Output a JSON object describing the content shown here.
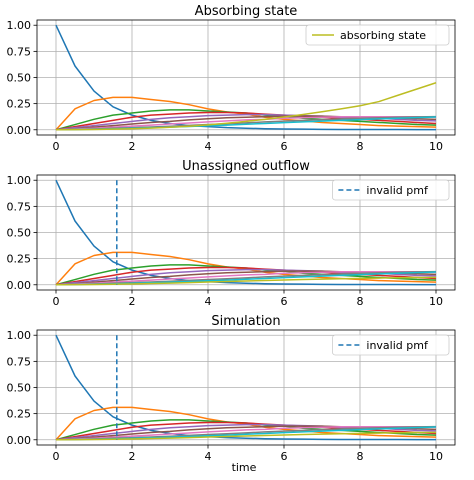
{
  "figure": {
    "xlabel": "time"
  },
  "chart_data": [
    {
      "type": "line",
      "title": "Absorbing state",
      "xlim": [
        -0.5,
        10.5
      ],
      "ylim": [
        -0.05,
        1.05
      ],
      "xticks": [
        0,
        2,
        4,
        6,
        8,
        10
      ],
      "xtick_labels": [
        "0",
        "2",
        "4",
        "6",
        "8",
        "10"
      ],
      "yticks": [
        0,
        0.25,
        0.5,
        0.75,
        1
      ],
      "ytick_labels": [
        "0.00",
        "0.25",
        "0.50",
        "0.75",
        "1.00"
      ],
      "grid": true,
      "legend": {
        "position": "top-right",
        "entries": [
          {
            "label": "absorbing state",
            "style": "solid",
            "color": "#bcbd22"
          }
        ]
      },
      "x": [
        0,
        0.5,
        1,
        1.5,
        2,
        2.5,
        3,
        3.5,
        4,
        4.5,
        5,
        5.5,
        6,
        6.5,
        7,
        7.5,
        8,
        8.5,
        9,
        9.5,
        10
      ],
      "series": [
        {
          "color": "#1f77b4",
          "values": [
            1,
            0.61,
            0.37,
            0.22,
            0.14,
            0.09,
            0.06,
            0.04,
            0.03,
            0.02,
            0.015,
            0.01,
            0.008,
            0.006,
            0.004,
            0.003,
            0.003,
            0.002,
            0.002,
            0.001,
            0.001
          ]
        },
        {
          "color": "#ff7f0e",
          "values": [
            0,
            0.2,
            0.28,
            0.31,
            0.31,
            0.29,
            0.27,
            0.24,
            0.2,
            0.17,
            0.15,
            0.12,
            0.1,
            0.085,
            0.07,
            0.06,
            0.05,
            0.04,
            0.035,
            0.03,
            0.025
          ]
        },
        {
          "color": "#2ca02c",
          "values": [
            0,
            0.05,
            0.1,
            0.14,
            0.16,
            0.18,
            0.19,
            0.19,
            0.18,
            0.17,
            0.16,
            0.14,
            0.13,
            0.11,
            0.1,
            0.09,
            0.08,
            0.07,
            0.06,
            0.05,
            0.045
          ]
        },
        {
          "color": "#d62728",
          "values": [
            0,
            0.03,
            0.06,
            0.09,
            0.12,
            0.14,
            0.15,
            0.16,
            0.165,
            0.165,
            0.16,
            0.15,
            0.14,
            0.13,
            0.12,
            0.11,
            0.1,
            0.09,
            0.08,
            0.07,
            0.06
          ]
        },
        {
          "color": "#9467bd",
          "values": [
            0,
            0.02,
            0.04,
            0.06,
            0.08,
            0.1,
            0.115,
            0.125,
            0.135,
            0.14,
            0.145,
            0.145,
            0.14,
            0.135,
            0.13,
            0.12,
            0.115,
            0.11,
            0.1,
            0.09,
            0.085
          ]
        },
        {
          "color": "#8c564b",
          "values": [
            0,
            0.01,
            0.025,
            0.04,
            0.055,
            0.07,
            0.08,
            0.095,
            0.105,
            0.115,
            0.12,
            0.125,
            0.13,
            0.13,
            0.13,
            0.125,
            0.12,
            0.115,
            0.11,
            0.105,
            0.1
          ]
        },
        {
          "color": "#e377c2",
          "values": [
            0,
            0.008,
            0.015,
            0.025,
            0.035,
            0.045,
            0.055,
            0.065,
            0.075,
            0.085,
            0.095,
            0.1,
            0.11,
            0.115,
            0.12,
            0.125,
            0.125,
            0.125,
            0.125,
            0.125,
            0.12
          ]
        },
        {
          "color": "#7f7f7f",
          "values": [
            0,
            0.003,
            0.008,
            0.014,
            0.02,
            0.027,
            0.034,
            0.042,
            0.05,
            0.058,
            0.066,
            0.075,
            0.083,
            0.09,
            0.097,
            0.104,
            0.11,
            0.115,
            0.12,
            0.123,
            0.126
          ]
        },
        {
          "color": "#17becf",
          "values": [
            0,
            0.002,
            0.005,
            0.009,
            0.014,
            0.019,
            0.025,
            0.031,
            0.038,
            0.045,
            0.053,
            0.06,
            0.068,
            0.076,
            0.083,
            0.09,
            0.097,
            0.104,
            0.11,
            0.116,
            0.122
          ]
        },
        {
          "color": "#bcbd22",
          "values": [
            0,
            0.001,
            0.003,
            0.006,
            0.01,
            0.016,
            0.024,
            0.034,
            0.047,
            0.062,
            0.08,
            0.1,
            0.122,
            0.146,
            0.172,
            0.2,
            0.23,
            0.27,
            0.33,
            0.39,
            0.45
          ]
        }
      ],
      "vline": null
    },
    {
      "type": "line",
      "title": "Unassigned outflow",
      "xlim": [
        -0.5,
        10.5
      ],
      "ylim": [
        -0.05,
        1.05
      ],
      "xticks": [
        0,
        2,
        4,
        6,
        8,
        10
      ],
      "xtick_labels": [
        "0",
        "2",
        "4",
        "6",
        "8",
        "10"
      ],
      "yticks": [
        0,
        0.25,
        0.5,
        0.75,
        1
      ],
      "ytick_labels": [
        "0.00",
        "0.25",
        "0.50",
        "0.75",
        "1.00"
      ],
      "grid": true,
      "legend": {
        "position": "top-right",
        "entries": [
          {
            "label": "invalid pmf",
            "style": "dashed",
            "color": "#1f77b4"
          }
        ]
      },
      "x": [
        0,
        0.5,
        1,
        1.5,
        2,
        2.5,
        3,
        3.5,
        4,
        4.5,
        5,
        5.5,
        6,
        6.5,
        7,
        7.5,
        8,
        8.5,
        9,
        9.5,
        10
      ],
      "series": [
        {
          "color": "#1f77b4",
          "values": [
            1,
            0.61,
            0.37,
            0.22,
            0.14,
            0.09,
            0.06,
            0.04,
            0.03,
            0.02,
            0.015,
            0.01,
            0.008,
            0.006,
            0.004,
            0.003,
            0.003,
            0.002,
            0.002,
            0.001,
            0.001
          ]
        },
        {
          "color": "#ff7f0e",
          "values": [
            0,
            0.2,
            0.28,
            0.31,
            0.31,
            0.29,
            0.27,
            0.24,
            0.2,
            0.17,
            0.15,
            0.12,
            0.1,
            0.085,
            0.07,
            0.06,
            0.05,
            0.04,
            0.035,
            0.03,
            0.025
          ]
        },
        {
          "color": "#2ca02c",
          "values": [
            0,
            0.05,
            0.1,
            0.14,
            0.16,
            0.18,
            0.19,
            0.19,
            0.18,
            0.17,
            0.16,
            0.14,
            0.13,
            0.11,
            0.1,
            0.09,
            0.08,
            0.07,
            0.06,
            0.05,
            0.045
          ]
        },
        {
          "color": "#d62728",
          "values": [
            0,
            0.03,
            0.06,
            0.09,
            0.12,
            0.14,
            0.15,
            0.16,
            0.165,
            0.165,
            0.16,
            0.15,
            0.14,
            0.13,
            0.12,
            0.11,
            0.1,
            0.09,
            0.08,
            0.07,
            0.06
          ]
        },
        {
          "color": "#9467bd",
          "values": [
            0,
            0.02,
            0.04,
            0.06,
            0.08,
            0.1,
            0.115,
            0.125,
            0.135,
            0.14,
            0.145,
            0.145,
            0.14,
            0.135,
            0.13,
            0.12,
            0.115,
            0.11,
            0.1,
            0.09,
            0.085
          ]
        },
        {
          "color": "#8c564b",
          "values": [
            0,
            0.01,
            0.025,
            0.04,
            0.055,
            0.07,
            0.08,
            0.095,
            0.105,
            0.115,
            0.12,
            0.125,
            0.13,
            0.13,
            0.13,
            0.125,
            0.12,
            0.115,
            0.11,
            0.105,
            0.1
          ]
        },
        {
          "color": "#e377c2",
          "values": [
            0,
            0.008,
            0.015,
            0.025,
            0.035,
            0.045,
            0.055,
            0.065,
            0.075,
            0.085,
            0.095,
            0.1,
            0.11,
            0.115,
            0.12,
            0.125,
            0.125,
            0.125,
            0.125,
            0.125,
            0.12
          ]
        },
        {
          "color": "#7f7f7f",
          "values": [
            0,
            0.003,
            0.008,
            0.014,
            0.02,
            0.027,
            0.034,
            0.042,
            0.05,
            0.058,
            0.066,
            0.075,
            0.083,
            0.09,
            0.097,
            0.104,
            0.11,
            0.115,
            0.12,
            0.123,
            0.126
          ]
        },
        {
          "color": "#17becf",
          "values": [
            0,
            0.002,
            0.005,
            0.009,
            0.014,
            0.019,
            0.025,
            0.031,
            0.038,
            0.045,
            0.053,
            0.06,
            0.068,
            0.076,
            0.083,
            0.09,
            0.097,
            0.104,
            0.11,
            0.116,
            0.122
          ]
        },
        {
          "color": "#bcbd22",
          "values": [
            0,
            0.001,
            0.003,
            0.005,
            0.008,
            0.012,
            0.016,
            0.021,
            0.026,
            0.031,
            0.036,
            0.041,
            0.046,
            0.05,
            0.054,
            0.058,
            0.061,
            0.064,
            0.067,
            0.069,
            0.071
          ]
        }
      ],
      "vline": {
        "x": 1.6,
        "ymin": 0,
        "ymax": 1,
        "color": "#1f77b4",
        "style": "dashed"
      }
    },
    {
      "type": "line",
      "title": "Simulation",
      "xlim": [
        -0.5,
        10.5
      ],
      "ylim": [
        -0.05,
        1.05
      ],
      "xticks": [
        0,
        2,
        4,
        6,
        8,
        10
      ],
      "xtick_labels": [
        "0",
        "2",
        "4",
        "6",
        "8",
        "10"
      ],
      "yticks": [
        0,
        0.25,
        0.5,
        0.75,
        1
      ],
      "ytick_labels": [
        "0.00",
        "0.25",
        "0.50",
        "0.75",
        "1.00"
      ],
      "grid": true,
      "legend": {
        "position": "top-right",
        "entries": [
          {
            "label": "invalid pmf",
            "style": "dashed",
            "color": "#1f77b4"
          }
        ]
      },
      "x": [
        0,
        0.5,
        1,
        1.5,
        2,
        2.5,
        3,
        3.5,
        4,
        4.5,
        5,
        5.5,
        6,
        6.5,
        7,
        7.5,
        8,
        8.5,
        9,
        9.5,
        10
      ],
      "series": [
        {
          "color": "#1f77b4",
          "values": [
            1,
            0.61,
            0.37,
            0.22,
            0.14,
            0.09,
            0.06,
            0.04,
            0.03,
            0.02,
            0.015,
            0.01,
            0.008,
            0.006,
            0.004,
            0.003,
            0.003,
            0.002,
            0.002,
            0.001,
            0.001
          ]
        },
        {
          "color": "#ff7f0e",
          "values": [
            0,
            0.2,
            0.28,
            0.31,
            0.31,
            0.29,
            0.27,
            0.24,
            0.2,
            0.17,
            0.15,
            0.12,
            0.1,
            0.085,
            0.07,
            0.06,
            0.05,
            0.04,
            0.035,
            0.03,
            0.025
          ]
        },
        {
          "color": "#2ca02c",
          "values": [
            0,
            0.05,
            0.1,
            0.14,
            0.16,
            0.18,
            0.19,
            0.19,
            0.18,
            0.17,
            0.16,
            0.14,
            0.13,
            0.11,
            0.1,
            0.09,
            0.08,
            0.07,
            0.06,
            0.05,
            0.045
          ]
        },
        {
          "color": "#d62728",
          "values": [
            0,
            0.03,
            0.06,
            0.09,
            0.12,
            0.14,
            0.15,
            0.16,
            0.165,
            0.165,
            0.16,
            0.15,
            0.14,
            0.13,
            0.12,
            0.11,
            0.1,
            0.09,
            0.08,
            0.07,
            0.06
          ]
        },
        {
          "color": "#9467bd",
          "values": [
            0,
            0.02,
            0.04,
            0.06,
            0.08,
            0.1,
            0.115,
            0.125,
            0.135,
            0.14,
            0.145,
            0.145,
            0.14,
            0.135,
            0.13,
            0.12,
            0.115,
            0.11,
            0.1,
            0.09,
            0.085
          ]
        },
        {
          "color": "#8c564b",
          "values": [
            0,
            0.01,
            0.025,
            0.04,
            0.055,
            0.07,
            0.08,
            0.095,
            0.105,
            0.115,
            0.12,
            0.125,
            0.13,
            0.13,
            0.13,
            0.125,
            0.12,
            0.115,
            0.11,
            0.105,
            0.1
          ]
        },
        {
          "color": "#e377c2",
          "values": [
            0,
            0.008,
            0.015,
            0.025,
            0.035,
            0.045,
            0.055,
            0.065,
            0.075,
            0.085,
            0.095,
            0.1,
            0.11,
            0.115,
            0.12,
            0.125,
            0.125,
            0.125,
            0.125,
            0.125,
            0.12
          ]
        },
        {
          "color": "#7f7f7f",
          "values": [
            0,
            0.003,
            0.008,
            0.014,
            0.02,
            0.027,
            0.034,
            0.042,
            0.05,
            0.058,
            0.066,
            0.075,
            0.083,
            0.09,
            0.097,
            0.104,
            0.11,
            0.115,
            0.12,
            0.123,
            0.126
          ]
        },
        {
          "color": "#17becf",
          "values": [
            0,
            0.002,
            0.005,
            0.009,
            0.014,
            0.019,
            0.025,
            0.031,
            0.038,
            0.045,
            0.053,
            0.06,
            0.068,
            0.076,
            0.083,
            0.09,
            0.097,
            0.104,
            0.11,
            0.116,
            0.122
          ]
        },
        {
          "color": "#bcbd22",
          "values": [
            0,
            0.001,
            0.003,
            0.005,
            0.008,
            0.012,
            0.016,
            0.021,
            0.026,
            0.031,
            0.036,
            0.041,
            0.046,
            0.05,
            0.054,
            0.058,
            0.061,
            0.064,
            0.067,
            0.069,
            0.071
          ]
        }
      ],
      "vline": {
        "x": 1.6,
        "ymin": 0,
        "ymax": 1,
        "color": "#1f77b4",
        "style": "dashed"
      }
    }
  ]
}
